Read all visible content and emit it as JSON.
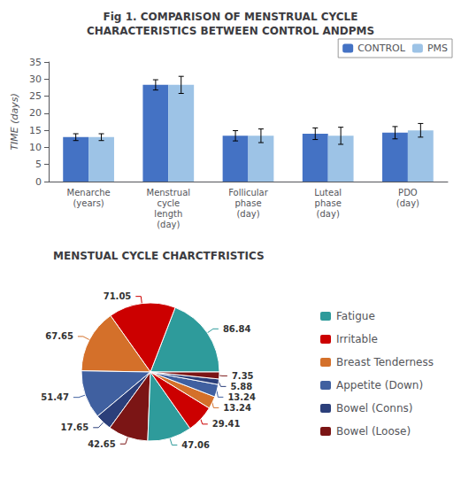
{
  "chart_data": [
    {
      "type": "bar",
      "title": "Fig 1. COMPARISON OF MENSTRUAL CYCLE\nCHARACTERISTICS BETWEEN CONTROL ANDPMS",
      "categories": [
        "Menarche\n(years)",
        "Menstrual\ncycle\nlength\n(day)",
        "Follicular\nphase\n(day)",
        "Luteal\nphase\n(day)",
        "PDO\n(day)"
      ],
      "series": [
        {
          "name": "CONTROL",
          "color": "#4472C4",
          "values": [
            13.0,
            28.3,
            13.4,
            14.0,
            14.3
          ],
          "errors": [
            1.0,
            1.5,
            1.5,
            1.7,
            1.8
          ]
        },
        {
          "name": "PMS",
          "color": "#9DC3E6",
          "values": [
            13.0,
            28.3,
            13.4,
            13.4,
            15.0
          ],
          "errors": [
            1.0,
            2.5,
            2.0,
            2.5,
            2.0
          ]
        }
      ],
      "ylabel": "TIME (days)",
      "ylim": [
        0,
        35
      ],
      "yticks": [
        0,
        5,
        10,
        15,
        20,
        25,
        30,
        35
      ],
      "legend": "upper right",
      "grid": false
    },
    {
      "type": "pie",
      "title": "MENSTUAL CYCLE CHARCTFRISTICS",
      "categories": [
        "Fatigue",
        "Irritable",
        "Breast Tenderness",
        "Appetite (Down)",
        "Bowel (Conns)",
        "Bowel (Loose)",
        "Fatigue",
        "Irritable",
        "Breast Tenderness",
        "Appetite (Down)",
        "Bowel (Conns)",
        "Bowel (Loose)"
      ],
      "values": [
        86.84,
        71.05,
        67.65,
        51.47,
        17.65,
        42.65,
        47.06,
        29.41,
        13.24,
        13.24,
        5.88,
        7.35
      ],
      "colors": [
        "#2E9B9B",
        "#CC0000",
        "#D4702A",
        "#4060A0",
        "#2B3F7A",
        "#7B1515",
        "#2E9B9B",
        "#CC0000",
        "#D4702A",
        "#4060A0",
        "#2B3F7A",
        "#7B1515"
      ],
      "data_labels": true,
      "legend": "right"
    }
  ]
}
